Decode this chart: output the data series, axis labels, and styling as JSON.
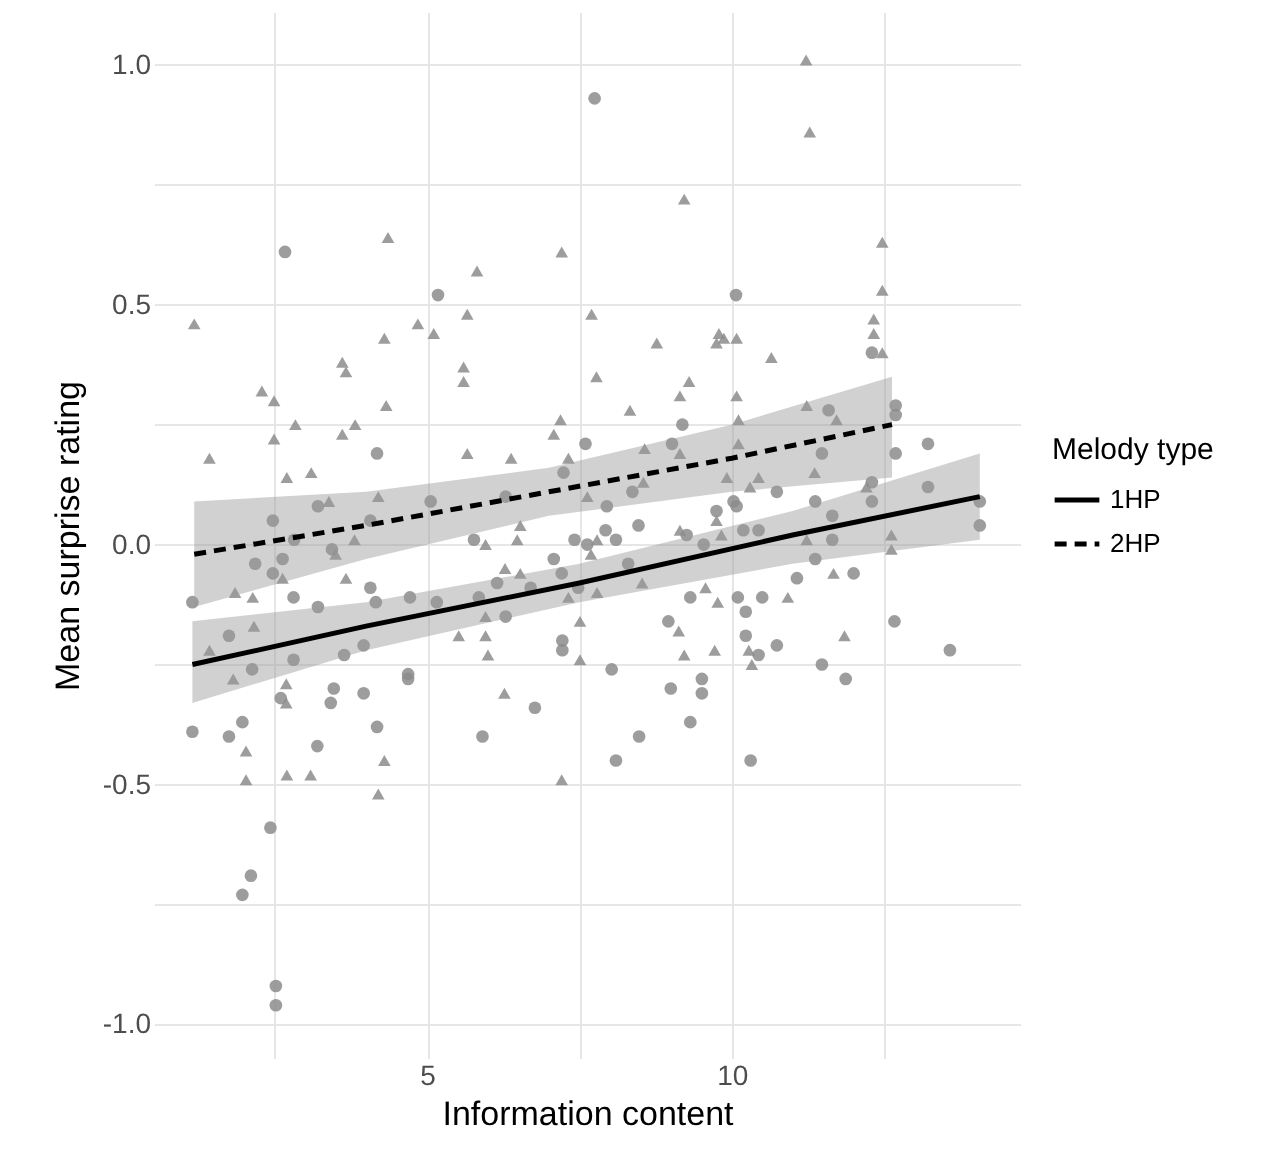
{
  "chart_data": {
    "type": "scatter",
    "xlabel": "Information content",
    "ylabel": "Mean surprise rating",
    "legend_title": "Melody type",
    "legend": "right",
    "grid": true,
    "xlim": [
      0.52,
      14.73
    ],
    "ylim": [
      -1.07,
      1.11
    ],
    "xticks": [
      {
        "value": 2.5,
        "label": null
      },
      5,
      {
        "value": 7.5,
        "label": null
      },
      10,
      {
        "value": 12.5,
        "label": null
      }
    ],
    "yticks": [
      {
        "value": -1,
        "label": "-1.0"
      },
      {
        "value": -0.75,
        "label": null
      },
      {
        "value": -0.5,
        "label": "-0.5"
      },
      {
        "value": -0.25,
        "label": null
      },
      {
        "value": 0,
        "label": "0.0"
      },
      {
        "value": 0.25,
        "label": null
      },
      {
        "value": 0.5,
        "label": "0.5"
      },
      {
        "value": 0.75,
        "label": null
      },
      {
        "value": 1,
        "label": "1.0"
      }
    ],
    "series": [
      {
        "marker": "circle",
        "color": "#8c8c8c",
        "x": [
          2.67,
          4.18,
          2.47,
          3.21,
          4.07,
          2.82,
          3.44,
          2.18,
          2.63,
          2.47,
          5.06,
          1.15,
          2.81,
          3.21,
          4.07,
          4.16,
          4.72,
          1.75,
          2.13,
          2.81,
          3.64,
          3.96,
          2.6,
          3.47,
          3.42,
          3.96,
          4.69,
          4.69,
          1.15,
          1.75,
          1.97,
          3.2,
          4.18,
          2.43,
          2.11,
          1.97,
          2.52,
          2.52,
          7.75,
          5.18,
          10.07,
          9.19,
          7.6,
          7.24,
          9.02,
          6.29,
          7.95,
          8.37,
          10.03,
          9.75,
          8.47,
          9.26,
          5.77,
          7.42,
          7.63,
          7.93,
          8.1,
          9.54,
          7.08,
          8.3,
          7.21,
          5.16,
          5.85,
          6.15,
          6.29,
          6.7,
          7.48,
          7.22,
          7.22,
          8.03,
          6.77,
          5.91,
          8.1,
          8.48,
          8.96,
          9.0,
          9.32,
          10.1,
          9.51,
          9.51,
          9.32,
          12.3,
          12.69,
          12.69,
          11.59,
          12.69,
          13.22,
          11.48,
          10.74,
          12.3,
          13.22,
          11.37,
          12.3,
          10.08,
          10.19,
          10.44,
          11.65,
          11.65,
          14.07,
          14.07,
          11.37,
          12.0,
          11.07,
          10.5,
          10.23,
          10.23,
          10.44,
          10.74,
          11.48,
          11.87,
          12.67,
          13.58,
          10.31
        ],
        "values": [
          0.61,
          0.19,
          0.05,
          0.08,
          0.05,
          0.01,
          -0.01,
          -0.04,
          -0.03,
          -0.06,
          0.09,
          -0.12,
          -0.11,
          -0.13,
          -0.09,
          -0.12,
          -0.11,
          -0.19,
          -0.26,
          -0.24,
          -0.23,
          -0.21,
          -0.32,
          -0.3,
          -0.33,
          -0.31,
          -0.27,
          -0.28,
          -0.39,
          -0.4,
          -0.37,
          -0.42,
          -0.38,
          -0.59,
          -0.69,
          -0.73,
          -0.92,
          -0.96,
          0.93,
          0.52,
          0.52,
          0.25,
          0.21,
          0.15,
          0.21,
          0.1,
          0.08,
          0.11,
          0.09,
          0.07,
          0.04,
          0.02,
          0.01,
          0.01,
          0.0,
          0.03,
          0.01,
          0.0,
          -0.03,
          -0.04,
          -0.06,
          -0.12,
          -0.11,
          -0.08,
          -0.15,
          -0.09,
          -0.09,
          -0.2,
          -0.22,
          -0.26,
          -0.34,
          -0.4,
          -0.45,
          -0.4,
          -0.16,
          -0.3,
          -0.11,
          -0.11,
          -0.28,
          -0.31,
          -0.37,
          0.4,
          0.29,
          0.27,
          0.28,
          0.19,
          0.21,
          0.19,
          0.11,
          0.13,
          0.12,
          0.09,
          0.09,
          0.08,
          0.03,
          0.03,
          0.06,
          0.01,
          0.09,
          0.04,
          -0.03,
          -0.06,
          -0.07,
          -0.11,
          -0.14,
          -0.19,
          -0.23,
          -0.21,
          -0.25,
          -0.28,
          -0.16,
          -0.22,
          -0.45
        ]
      },
      {
        "marker": "triangle",
        "color": "#8c8c8c",
        "x": [
          1.18,
          1.43,
          2.29,
          2.49,
          2.49,
          2.84,
          2.7,
          3.1,
          3.61,
          3.67,
          3.61,
          3.82,
          4.3,
          4.36,
          4.33,
          4.85,
          4.2,
          3.39,
          3.5,
          3.81,
          1.85,
          2.14,
          2.16,
          1.43,
          1.82,
          2.63,
          3.67,
          2.69,
          2.69,
          2.03,
          2.03,
          2.7,
          3.09,
          4.3,
          4.2,
          9.22,
          7.21,
          5.82,
          5.66,
          7.7,
          5.11,
          5.6,
          5.6,
          7.78,
          8.77,
          9.79,
          9.75,
          9.87,
          10.08,
          9.3,
          9.15,
          8.33,
          7.19,
          7.08,
          7.32,
          5.66,
          6.38,
          8.57,
          9.15,
          8.55,
          10.08,
          10.11,
          10.11,
          9.92,
          7.63,
          6.53,
          9.15,
          9.75,
          5.96,
          6.48,
          7.79,
          9.83,
          7.69,
          6.28,
          6.53,
          5.96,
          5.52,
          5.96,
          6.0,
          7.32,
          7.79,
          8.53,
          7.51,
          7.51,
          6.27,
          7.21,
          9.13,
          9.22,
          9.57,
          9.77,
          9.72,
          11.22,
          11.28,
          12.47,
          12.47,
          12.33,
          12.33,
          12.47,
          10.65,
          11.23,
          11.72,
          11.36,
          10.44,
          10.3,
          12.21,
          11.23,
          12.62,
          12.62,
          11.67,
          10.92,
          10.28,
          10.33,
          11.85
        ],
        "values": [
          0.46,
          0.18,
          0.32,
          0.3,
          0.22,
          0.25,
          0.14,
          0.15,
          0.38,
          0.36,
          0.23,
          0.25,
          0.43,
          0.64,
          0.29,
          0.46,
          0.1,
          0.09,
          -0.02,
          0.01,
          -0.1,
          -0.11,
          -0.17,
          -0.22,
          -0.28,
          -0.07,
          -0.07,
          -0.29,
          -0.33,
          -0.43,
          -0.49,
          -0.48,
          -0.48,
          -0.45,
          -0.52,
          0.72,
          0.61,
          0.57,
          0.48,
          0.48,
          0.44,
          0.37,
          0.34,
          0.35,
          0.42,
          0.44,
          0.42,
          0.43,
          0.43,
          0.34,
          0.31,
          0.28,
          0.26,
          0.23,
          0.18,
          0.19,
          0.18,
          0.2,
          0.19,
          0.13,
          0.31,
          0.26,
          0.21,
          0.14,
          0.1,
          0.04,
          0.03,
          0.05,
          0.0,
          0.01,
          0.01,
          0.02,
          -0.02,
          -0.05,
          -0.06,
          -0.15,
          -0.19,
          -0.19,
          -0.23,
          -0.11,
          -0.1,
          -0.08,
          -0.16,
          -0.24,
          -0.31,
          -0.49,
          -0.18,
          -0.23,
          -0.09,
          -0.12,
          -0.22,
          1.01,
          0.86,
          0.63,
          0.53,
          0.47,
          0.44,
          0.4,
          0.39,
          0.29,
          0.26,
          0.15,
          0.14,
          0.12,
          0.12,
          0.01,
          0.02,
          -0.01,
          -0.06,
          -0.11,
          -0.22,
          -0.25,
          -0.19
        ]
      },
      {
        "type": "line",
        "name": "1HP",
        "color": "#000000",
        "line_style": "solid",
        "x": [
          1.15,
          4,
          7.5,
          11,
          14.07
        ],
        "values": [
          -0.25,
          -0.17,
          -0.08,
          0.02,
          0.1
        ],
        "lower": [
          -0.33,
          -0.22,
          -0.12,
          -0.04,
          0.01
        ],
        "upper": [
          -0.16,
          -0.12,
          -0.04,
          0.07,
          0.19
        ]
      },
      {
        "type": "line",
        "name": "2HP",
        "color": "#000000",
        "line_style": "dashed",
        "x": [
          1.18,
          4,
          7,
          10,
          12.63
        ],
        "values": [
          -0.02,
          0.04,
          0.11,
          0.18,
          0.25
        ],
        "lower": [
          -0.13,
          -0.03,
          0.06,
          0.11,
          0.14
        ],
        "upper": [
          0.09,
          0.11,
          0.16,
          0.25,
          0.35
        ]
      }
    ]
  }
}
